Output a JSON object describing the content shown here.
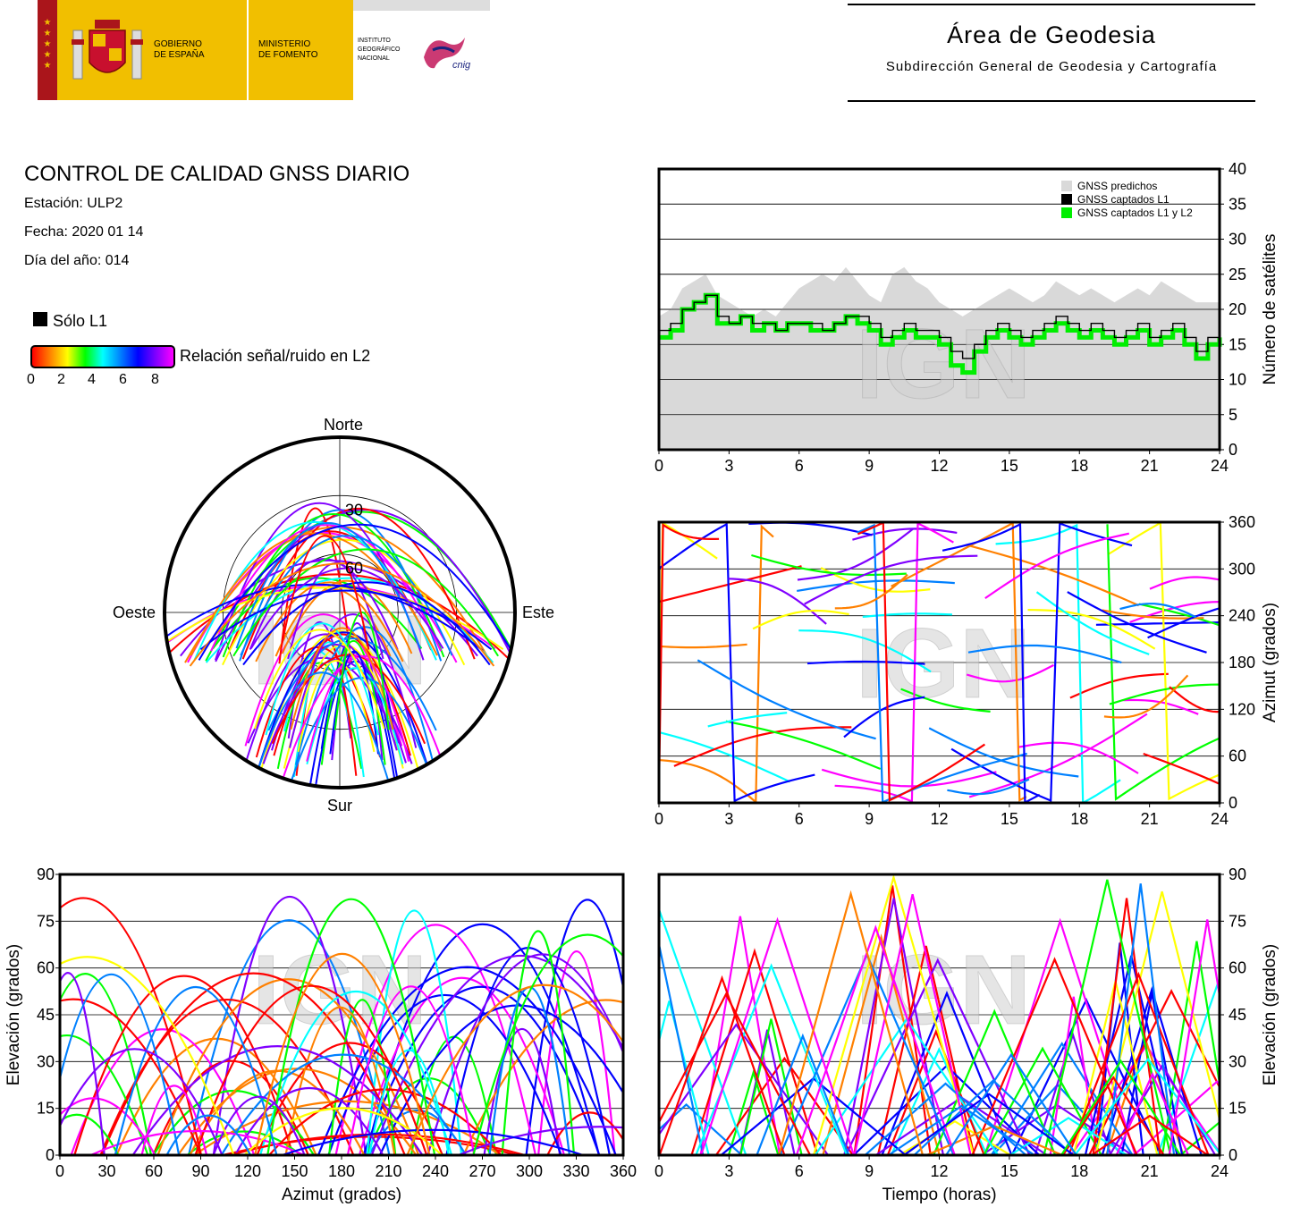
{
  "header": {
    "gov_line1": "GOBIERNO",
    "gov_line2": "DE ESPAÑA",
    "min_line1": "MINISTERIO",
    "min_line2": "DE FOMENTO",
    "inst_line1": "INSTITUTO",
    "inst_line2": "GEOGRÁFICO",
    "inst_line3": "NACIONAL",
    "cnig": "cnig",
    "area_title": "Área de Geodesia",
    "area_subtitle": "Subdirección General de Geodesia y Cartografía"
  },
  "info": {
    "title": "CONTROL DE CALIDAD GNSS DIARIO",
    "station": "Estación: ULP2",
    "date": "Fecha: 2020 01 14",
    "doy": "Día del año: 014",
    "solo_l1": "Sólo L1",
    "snr_label": "Relación señal/ruido en L2",
    "snr_ticks": [
      "0",
      "2",
      "4",
      "6",
      "8"
    ]
  },
  "colors": {
    "predicted": "#d9d9d9",
    "l1": "#000000",
    "l1l2": "#00ee00",
    "snr": [
      "#ff0000",
      "#ff8000",
      "#ffff00",
      "#00ff00",
      "#00ffff",
      "#0080ff",
      "#0000ff",
      "#8000ff",
      "#ff00ff"
    ]
  },
  "watermark": "IGN",
  "chart_data": [
    {
      "type": "area",
      "id": "sat-count",
      "ylabel": "Número de satélites",
      "xlim": [
        0,
        24
      ],
      "ylim": [
        0,
        40
      ],
      "xticks": [
        0,
        3,
        6,
        9,
        12,
        15,
        18,
        21,
        24
      ],
      "yticks": [
        0,
        5,
        10,
        15,
        20,
        25,
        30,
        35,
        40
      ],
      "grid": true,
      "legend_position": "top-right",
      "legend": [
        "GNSS predichos",
        "GNSS captados L1",
        "GNSS captados L1 y L2"
      ],
      "x": [
        0,
        0.5,
        1,
        1.5,
        2,
        2.5,
        3,
        3.5,
        4,
        4.5,
        5,
        5.5,
        6,
        6.5,
        7,
        7.5,
        8,
        8.5,
        9,
        9.5,
        10,
        10.5,
        11,
        11.5,
        12,
        12.5,
        13,
        13.5,
        14,
        14.5,
        15,
        15.5,
        16,
        16.5,
        17,
        17.5,
        18,
        18.5,
        19,
        19.5,
        20,
        20.5,
        21,
        21.5,
        22,
        22.5,
        23,
        23.5,
        24
      ],
      "series": [
        {
          "name": "GNSS predichos",
          "values": [
            19,
            20,
            23,
            24,
            25,
            22,
            21,
            20,
            19,
            20,
            19,
            21,
            23,
            24,
            25,
            24,
            26,
            24,
            22,
            21,
            25,
            26,
            24,
            23,
            21,
            20,
            19,
            20,
            21,
            22,
            23,
            22,
            21,
            22,
            24,
            23,
            22,
            23,
            22,
            21,
            22,
            23,
            22,
            24,
            23,
            22,
            21,
            21,
            21
          ]
        },
        {
          "name": "GNSS captados L1",
          "values": [
            17,
            18,
            20,
            21,
            22,
            19,
            18,
            19,
            18,
            18,
            17,
            18,
            18,
            18,
            17,
            18,
            19,
            19,
            18,
            16,
            17,
            18,
            17,
            17,
            16,
            14,
            13,
            15,
            17,
            18,
            17,
            16,
            17,
            18,
            19,
            18,
            17,
            18,
            17,
            16,
            17,
            18,
            16,
            17,
            18,
            16,
            14,
            16,
            17
          ]
        },
        {
          "name": "GNSS captados L1 y L2",
          "values": [
            16,
            17,
            20,
            21,
            22,
            18,
            18,
            19,
            17,
            18,
            17,
            18,
            18,
            17,
            17,
            18,
            19,
            18,
            17,
            15,
            16,
            17,
            16,
            16,
            15,
            12,
            11,
            14,
            16,
            17,
            16,
            15,
            16,
            17,
            18,
            17,
            16,
            17,
            16,
            15,
            16,
            17,
            15,
            16,
            17,
            15,
            13,
            15,
            16
          ]
        }
      ]
    },
    {
      "type": "scatter",
      "id": "azimuth-time",
      "ylabel": "Azimut (grados)",
      "xlim": [
        0,
        24
      ],
      "ylim": [
        0,
        360
      ],
      "xticks": [
        0,
        3,
        6,
        9,
        12,
        15,
        18,
        21,
        24
      ],
      "yticks": [
        0,
        60,
        120,
        180,
        240,
        300,
        360
      ],
      "grid": true,
      "color_encoding": "snr_l2"
    },
    {
      "type": "scatter",
      "id": "skyplot",
      "projection": "polar",
      "labels": {
        "north": "Norte",
        "south": "Sur",
        "east": "Este",
        "west": "Oeste"
      },
      "rings": [
        "30",
        "60"
      ],
      "color_encoding": "snr_l2"
    },
    {
      "type": "scatter",
      "id": "elev-azimuth",
      "xlabel": "Azimut (grados)",
      "ylabel": "Elevación (grados)",
      "xlim": [
        0,
        360
      ],
      "ylim": [
        0,
        90
      ],
      "xticks": [
        0,
        30,
        60,
        90,
        120,
        150,
        180,
        210,
        240,
        270,
        300,
        330,
        360
      ],
      "yticks": [
        0,
        15,
        30,
        45,
        60,
        75,
        90
      ],
      "grid": true,
      "color_encoding": "snr_l2"
    },
    {
      "type": "scatter",
      "id": "elev-time",
      "xlabel": "Tiempo (horas)",
      "ylabel": "Elevación (grados)",
      "xlim": [
        0,
        24
      ],
      "ylim": [
        0,
        90
      ],
      "xticks": [
        0,
        3,
        6,
        9,
        12,
        15,
        18,
        21,
        24
      ],
      "yticks": [
        0,
        15,
        30,
        45,
        60,
        75,
        90
      ],
      "grid": true,
      "color_encoding": "snr_l2"
    }
  ]
}
